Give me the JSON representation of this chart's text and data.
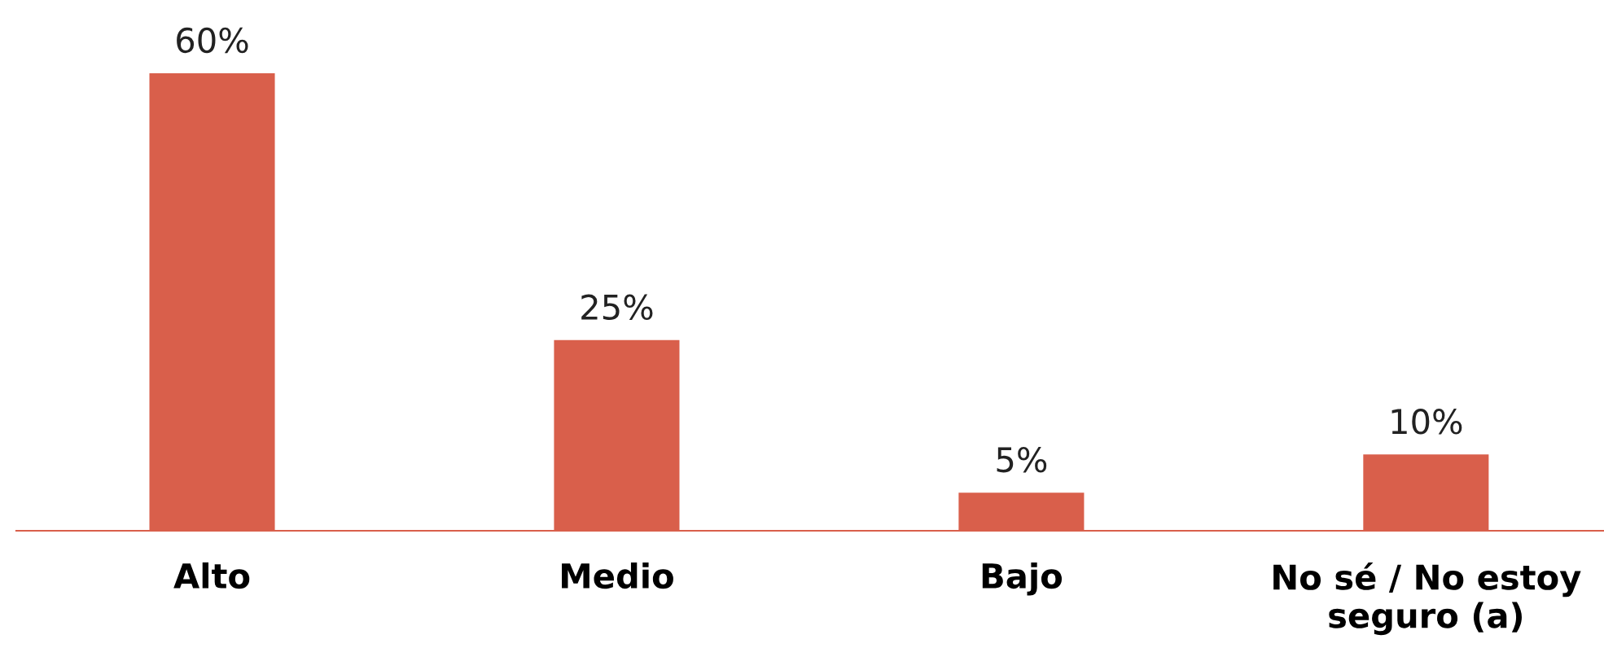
{
  "chart_data": {
    "type": "bar",
    "categories": [
      "Alto",
      "Medio",
      "Bajo",
      "No sé / No estoy\nseguro (a)"
    ],
    "values": [
      60,
      25,
      5,
      10
    ],
    "value_labels": [
      "60%",
      "25%",
      "5%",
      "10%"
    ],
    "color": "#d95f4b",
    "grid": false,
    "legend": false
  }
}
